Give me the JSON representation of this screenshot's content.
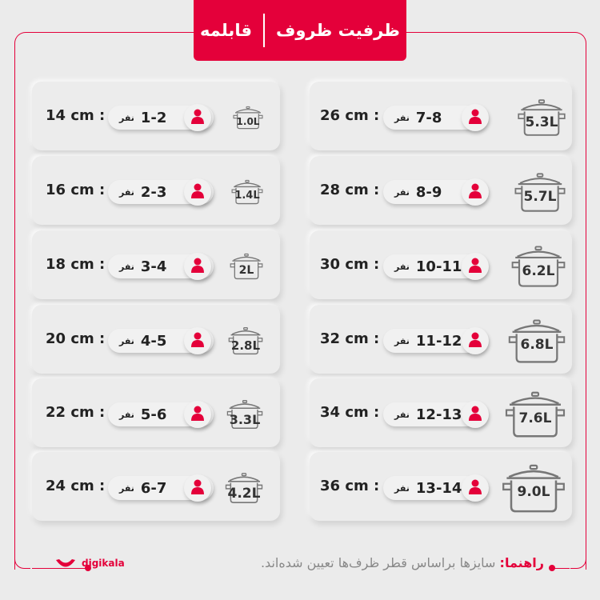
{
  "header": {
    "title": "ظرفیت ظروف",
    "subtitle": "قابلمه"
  },
  "colors": {
    "accent": "#e4003a",
    "card": "#ececec",
    "text": "#222222"
  },
  "people_unit": "نفر",
  "left_column": [
    {
      "size": "14 cm :",
      "people": "1-2",
      "volume": "1.0L"
    },
    {
      "size": "16 cm :",
      "people": "2-3",
      "volume": "1.4L"
    },
    {
      "size": "18 cm :",
      "people": "3-4",
      "volume": "2L"
    },
    {
      "size": "20 cm :",
      "people": "4-5",
      "volume": "2.8L"
    },
    {
      "size": "22 cm :",
      "people": "5-6",
      "volume": "3.3L"
    },
    {
      "size": "24 cm :",
      "people": "6-7",
      "volume": "4.2L"
    }
  ],
  "right_column": [
    {
      "size": "26 cm :",
      "people": "7-8",
      "volume": "5.3L"
    },
    {
      "size": "28 cm :",
      "people": "8-9",
      "volume": "5.7L"
    },
    {
      "size": "30 cm :",
      "people": "10-11",
      "volume": "6.2L"
    },
    {
      "size": "32 cm :",
      "people": "11-12",
      "volume": "6.8L"
    },
    {
      "size": "34 cm :",
      "people": "12-13",
      "volume": "7.6L"
    },
    {
      "size": "36 cm :",
      "people": "13-14",
      "volume": "9.0L"
    }
  ],
  "footer": {
    "label": "راهنما:",
    "text": " سایزها براساس قطر ظرف‌ها تعیین شده‌اند."
  },
  "logo": {
    "text": "digikala"
  },
  "icons": {
    "person": "person-icon",
    "pot": "pot-icon"
  }
}
